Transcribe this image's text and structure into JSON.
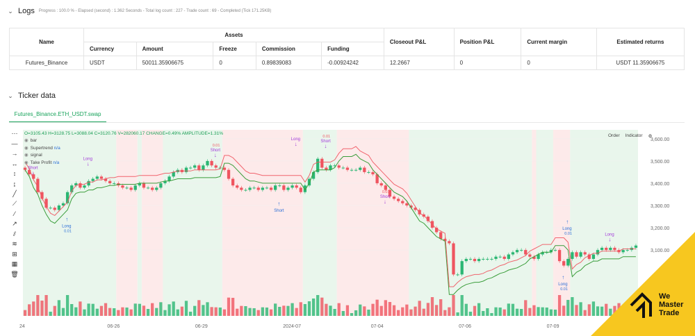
{
  "logs": {
    "title": "Logs",
    "meta": "Progress : 100.0 % - Elapsed (second) : 1.362 Seconds - Total log count : 227 - Trade count : 69 - Completed (Tick 171.25KB)",
    "headers": {
      "name": "Name",
      "assets": "Assets",
      "currency": "Currency",
      "amount": "Amount",
      "freeze": "Freeze",
      "commission": "Commission",
      "funding": "Funding",
      "closeout": "Closeout P&L",
      "position": "Position P&L",
      "margin": "Current margin",
      "returns": "Estimated returns"
    },
    "row": {
      "name": "Futures_Binance",
      "currency": "USDT",
      "amount": "50011.35906675",
      "freeze": "0",
      "commission": "0.89839083",
      "funding": "-0.00924242",
      "closeout": "12.2667",
      "position": "0",
      "margin": "0",
      "returns": "USDT 11.35906675"
    }
  },
  "ticker": {
    "title": "Ticker data",
    "tab": "Futures_Binance.ETH_USDT.swap",
    "legend": {
      "ohlc": "O=3105.43 H=3128.75 L=3088.04 C=3120.76 V=282060.17 CHANGE=0.49% AMPLITUDE=1.31%",
      "bar": "bar",
      "supertrend": "Supertrend",
      "supertrend_val": "n/a",
      "signal": "signal",
      "takeprofit": "Take Profit",
      "takeprofit_val": "n/a"
    },
    "buttons": {
      "order": "Order",
      "indicator": "Indicator"
    },
    "settings_icon": "gear-icon"
  },
  "colors": {
    "up": "#2bb673",
    "down": "#ef5560",
    "line": "#3a9d3a",
    "green_bg": "#e9f6ec",
    "red_bg": "#fdeaea",
    "accent": "#18a35b",
    "signal": "#a23ad9"
  },
  "chart_data": {
    "type": "candlestick",
    "x_ticks": [
      "24",
      "06-26",
      "06-29",
      "2024-07",
      "07-04",
      "07-06",
      "07-09",
      "07-"
    ],
    "y_ticks": [
      3600,
      3500,
      3400,
      3300,
      3200,
      3100
    ],
    "y_tick_labels": [
      "3,600.00",
      "3,500.00",
      "3,400.00",
      "3,300.00",
      "3,200.00",
      "3,100.00"
    ],
    "ylim": [
      2960,
      3640
    ],
    "close": [
      3460,
      3440,
      3420,
      3360,
      3330,
      3290,
      3290,
      3280,
      3300,
      3310,
      3360,
      3390,
      3400,
      3380,
      3390,
      3410,
      3420,
      3430,
      3420,
      3410,
      3400,
      3400,
      3390,
      3380,
      3380,
      3370,
      3390,
      3400,
      3380,
      3380,
      3370,
      3380,
      3400,
      3410,
      3430,
      3450,
      3460,
      3450,
      3470,
      3470,
      3480,
      3460,
      3480,
      3500,
      3480,
      3470,
      3470,
      3460,
      3420,
      3390,
      3380,
      3370,
      3370,
      3380,
      3380,
      3370,
      3380,
      3380,
      3370,
      3390,
      3390,
      3370,
      3380,
      3390,
      3380,
      3360,
      3390,
      3420,
      3450,
      3510,
      3470,
      3460,
      3480,
      3480,
      3470,
      3470,
      3460,
      3460,
      3460,
      3470,
      3450,
      3450,
      3440,
      3400,
      3390,
      3370,
      3340,
      3330,
      3320,
      3310,
      3300,
      3290,
      3280,
      3260,
      3250,
      3230,
      3200,
      3180,
      3150,
      3140,
      3130,
      2990,
      2990,
      3050,
      3060,
      3060,
      3050,
      3060,
      3060,
      3060,
      3060,
      3070,
      3070,
      3060,
      3080,
      3090,
      3100,
      3100,
      3080,
      3070,
      3060,
      3080,
      3090,
      3090,
      3100,
      3100,
      3050,
      3030,
      3060,
      3090,
      3070,
      3090,
      3080,
      3060,
      3080,
      3100,
      3110,
      3100,
      3110,
      3100,
      3090,
      3100,
      3100,
      3110,
      3120
    ],
    "supertrend": [
      3460,
      3430,
      3380,
      3350,
      3300,
      3260,
      3230,
      3220,
      3240,
      3260,
      3280,
      3330,
      3355,
      3360,
      3360,
      3370,
      3370,
      3380,
      3380,
      3385,
      3390,
      3390,
      3395,
      3395,
      3395,
      3395,
      3395,
      3400,
      3400,
      3400,
      3400,
      3400,
      3405,
      3410,
      3410,
      3415,
      3420,
      3420,
      3420,
      3420,
      3425,
      3425,
      3425,
      3425,
      3425,
      3425,
      3430,
      3490,
      3490,
      3480,
      3460,
      3440,
      3420,
      3410,
      3410,
      3405,
      3400,
      3400,
      3400,
      3400,
      3400,
      3400,
      3400,
      3400,
      3400,
      3400,
      3370,
      3400,
      3450,
      3460,
      3460,
      3460,
      3460,
      3470,
      3500,
      3520,
      3520,
      3520,
      3530,
      3510,
      3500,
      3490,
      3460,
      3440,
      3420,
      3400,
      3380,
      3360,
      3350,
      3340,
      3320,
      3290,
      3260,
      3230,
      3220,
      3200,
      3180,
      3160,
      3150,
      3140,
      2900,
      2900,
      2920,
      2935,
      2945,
      2950,
      2955,
      2955,
      2960,
      2970,
      2975,
      2985,
      2995,
      3000,
      3010,
      3015,
      3020,
      3030,
      3040,
      3060,
      3070,
      3080,
      3090,
      3090,
      3090,
      3120,
      3120,
      3120,
      3100,
      2980,
      3000,
      3010,
      3030,
      3040,
      3050,
      3050,
      3060,
      3060,
      3060,
      3060,
      3060,
      3070,
      3070,
      3070,
      3070
    ],
    "signals": [
      {
        "label": "Short",
        "price": 3420,
        "dir": "short",
        "size": ""
      },
      {
        "label": "Long",
        "price": 3460,
        "dir": "short",
        "size": ""
      },
      {
        "label": "Long",
        "price": 3270,
        "dir": "long",
        "size": "0.01"
      },
      {
        "label": "Short",
        "price": 3500,
        "dir": "short",
        "size": "0.01"
      },
      {
        "label": "Short",
        "price": 3340,
        "dir": "long",
        "size": ""
      },
      {
        "label": "Long",
        "price": 3550,
        "dir": "short",
        "size": ""
      },
      {
        "label": "Short",
        "price": 3290,
        "dir": "short",
        "size": "0.01"
      },
      {
        "label": "Short",
        "price": 3540,
        "dir": "short",
        "size": "0.01"
      },
      {
        "label": "Long",
        "price": 3260,
        "dir": "long",
        "size": "0.01"
      },
      {
        "label": "Long",
        "price": 3120,
        "dir": "short",
        "size": ""
      },
      {
        "label": "Long",
        "price": 3010,
        "dir": "long",
        "size": "0.01"
      }
    ]
  },
  "logo": {
    "line1": "We",
    "line2": "Master",
    "line3": "Trade",
    "mark": "®"
  }
}
